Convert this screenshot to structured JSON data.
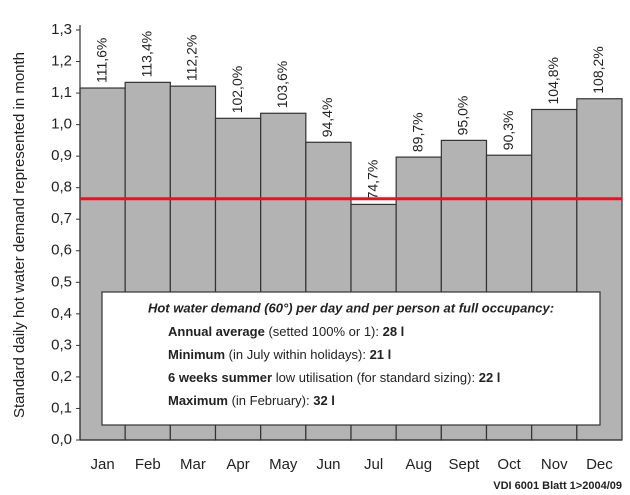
{
  "chart_data": {
    "type": "bar",
    "y_label": "Standard daily hot water demand represented in month",
    "categories": [
      "Jan",
      "Feb",
      "Mar",
      "Apr",
      "May",
      "Jun",
      "Jul",
      "Aug",
      "Sept",
      "Oct",
      "Nov",
      "Dec"
    ],
    "values": [
      1.116,
      1.134,
      1.122,
      1.02,
      1.036,
      0.944,
      0.747,
      0.897,
      0.95,
      0.903,
      1.048,
      1.082
    ],
    "value_labels": [
      "111,6%",
      "113,4%",
      "112,2%",
      "102,0%",
      "103,6%",
      "94,4%",
      "74,7%",
      "89,7%",
      "95,0%",
      "90,3%",
      "104,8%",
      "108,2%"
    ],
    "color": "#b3b3b3",
    "reference_line": {
      "value": 0.765,
      "color": "#e8141b"
    },
    "ylim": [
      0,
      1.3
    ],
    "yticks": [
      {
        "value": 0,
        "label": "0,0"
      },
      {
        "value": 0.1,
        "label": "0,1"
      },
      {
        "value": 0.2,
        "label": "0,2"
      },
      {
        "value": 0.3,
        "label": "0,3"
      },
      {
        "value": 0.4,
        "label": "0,4"
      },
      {
        "value": 0.5,
        "label": "0,5"
      },
      {
        "value": 0.6,
        "label": "0,6"
      },
      {
        "value": 0.7,
        "label": "0,7"
      },
      {
        "value": 0.8,
        "label": "0,8"
      },
      {
        "value": 0.9,
        "label": "0,9"
      },
      {
        "value": 1.0,
        "label": "1,0"
      },
      {
        "value": 1.1,
        "label": "1,1"
      },
      {
        "value": 1.2,
        "label": "1,2"
      },
      {
        "value": 1.3,
        "label": "1,3"
      }
    ],
    "annotation": {
      "heading": "Hot water demand (60°) per day and per person at full occupancy:",
      "lines": [
        {
          "label": "Annual average",
          "text": " (setted 100% or 1): ",
          "amount": "28 l"
        },
        {
          "label": "Minimum",
          "text": " (in July within holidays): ",
          "amount": "21 l"
        },
        {
          "label": "6 weeks summer",
          "text": " low utilisation (for standard sizing): ",
          "amount": "22 l"
        },
        {
          "label": "Maximum",
          "text": " (in February): ",
          "amount": "32 l"
        }
      ]
    },
    "source": "VDI 6001 Blatt 1>2004/09"
  }
}
